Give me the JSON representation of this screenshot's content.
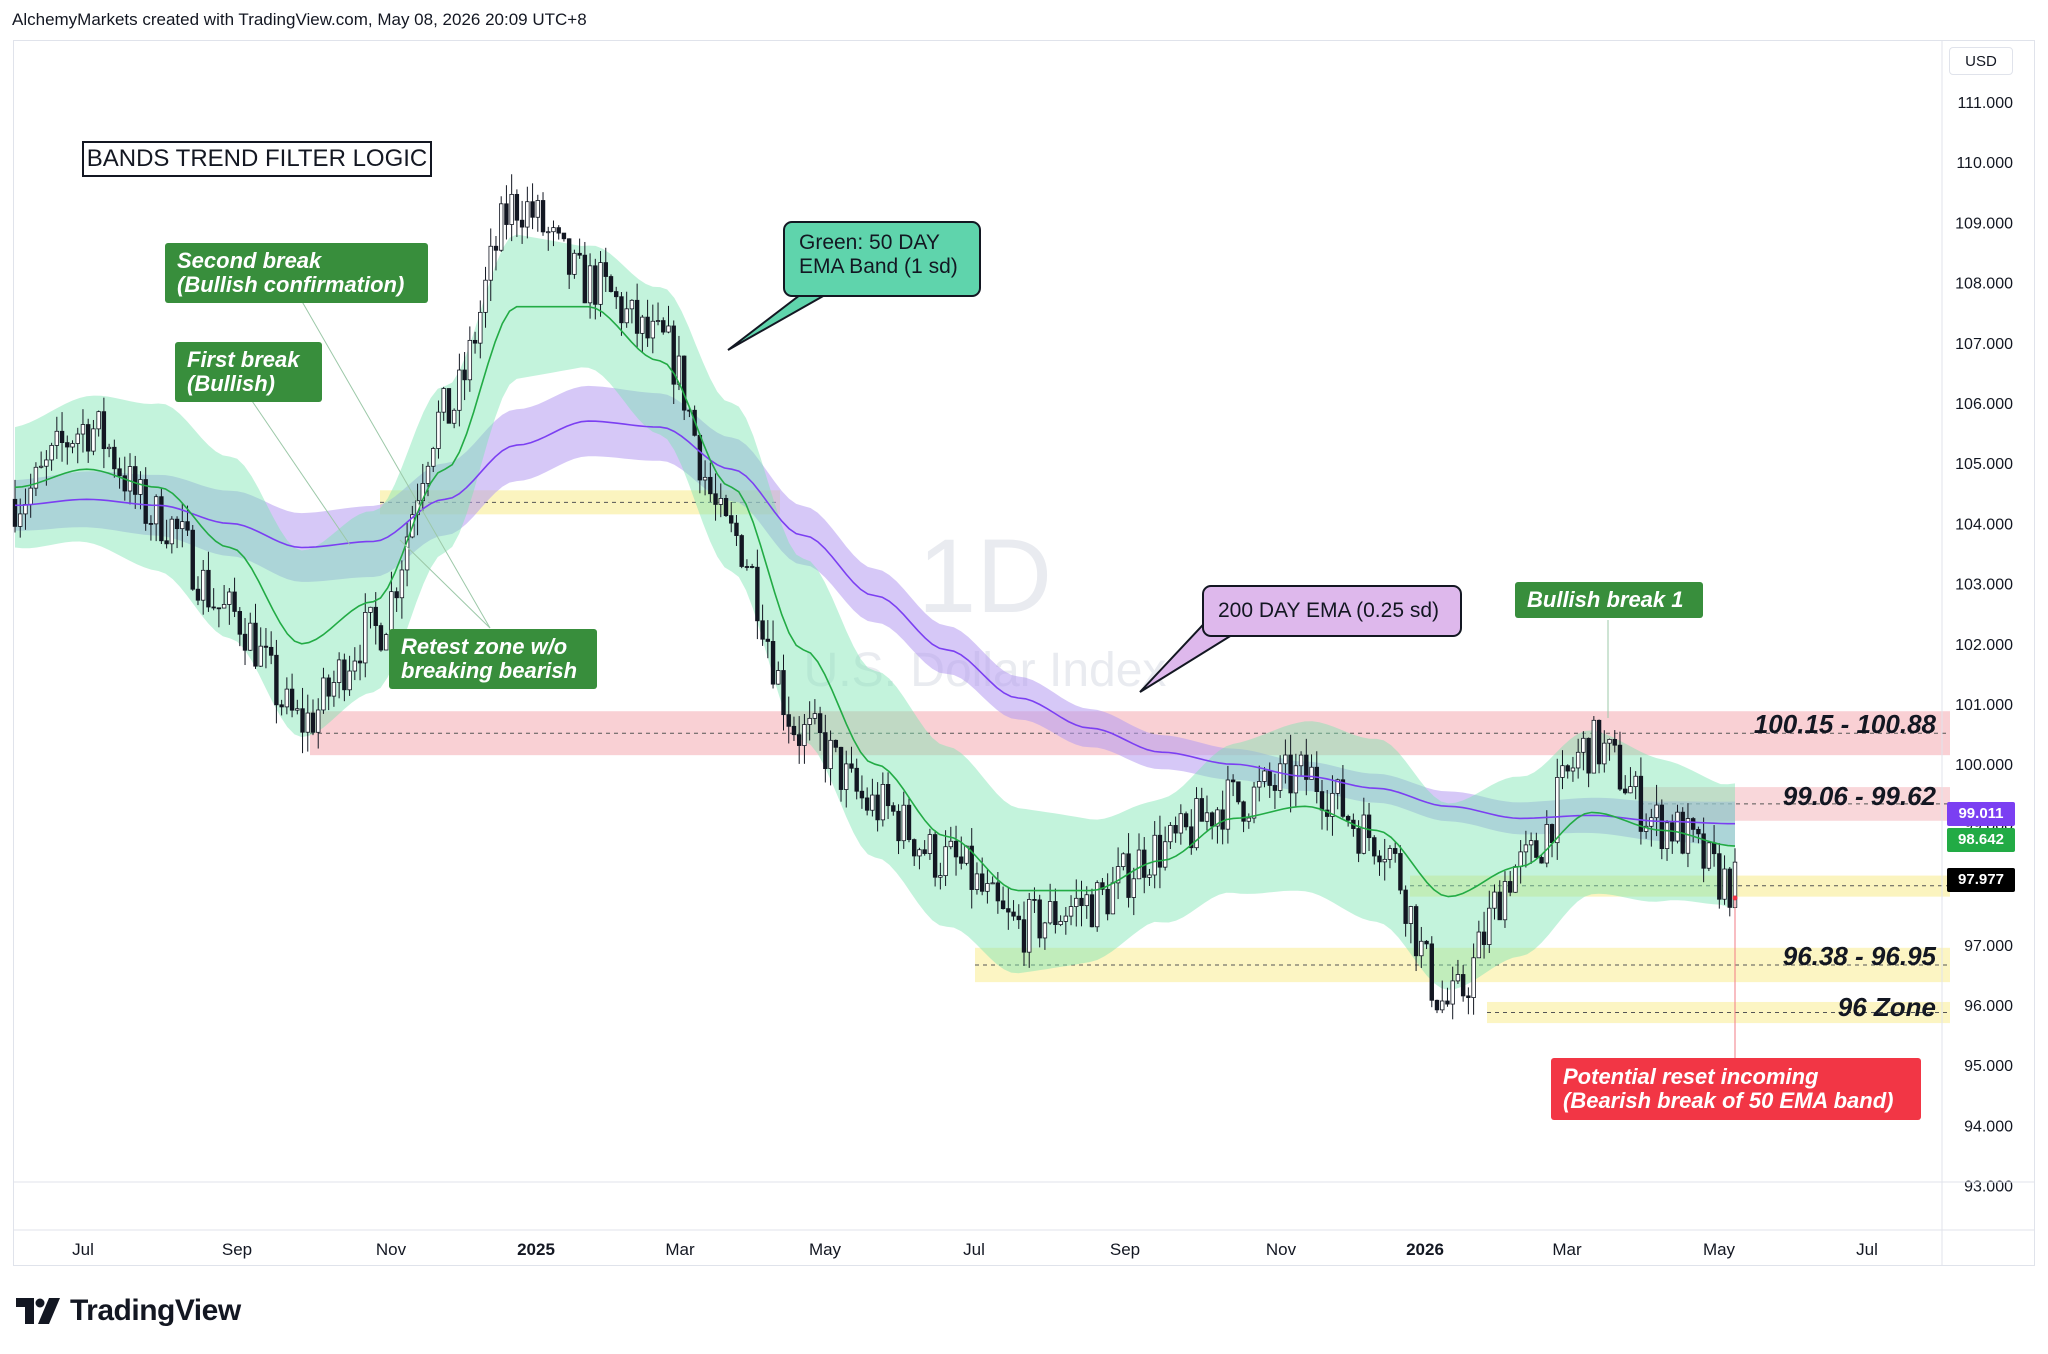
{
  "header": {
    "text": "AlchemyMarkets created with TradingView.com, May 08, 2026 20:09 UTC+8"
  },
  "brand": {
    "name": "TradingView"
  },
  "currency": "USD",
  "watermark": {
    "interval": "1D",
    "symbol": "U.S. Dollar Index"
  },
  "title_box": "BANDS TREND FILTER LOGIC",
  "annotations": {
    "second_break": "Second break\n(Bullish confirmation)",
    "first_break": "First break\n(Bullish)",
    "retest_zone": "Retest zone w/o\nbreaking bearish",
    "green_band": "Green: 50 DAY\nEMA Band (1 sd)",
    "purple_band": "200 DAY EMA (0.25 sd)",
    "bullish_break": "Bullish break 1",
    "reset": "Potential reset incoming\n(Bearish break of 50 EMA band)"
  },
  "zones": [
    {
      "label": "100.15 - 100.88",
      "low": 100.15,
      "high": 100.88,
      "color": "#f8c8cc"
    },
    {
      "label": "99.06 - 99.62",
      "low": 99.06,
      "high": 99.62,
      "color": "#f8d0d3"
    },
    {
      "label": "96.38 - 96.95",
      "low": 96.38,
      "high": 96.95,
      "color": "#fbf3b8"
    },
    {
      "label": "96 Zone",
      "low": 95.7,
      "high": 96.05,
      "color": "#fbf3b8"
    }
  ],
  "price_tags": [
    {
      "value": "99.011",
      "color": "#7b3ff2"
    },
    {
      "value": "98.642",
      "color": "#22ab45"
    },
    {
      "value": "97.977",
      "color": "#000000"
    }
  ],
  "colors": {
    "green_band": "#7be5b2",
    "purple_band": "#b49bf0",
    "ema50": "#22ab45",
    "ema200": "#7b3ff2",
    "candle": "#131722"
  },
  "chart_data": {
    "type": "line",
    "title": "BANDS TREND FILTER LOGIC",
    "instrument": "U.S. Dollar Index",
    "interval": "1D",
    "ylabel": "USD",
    "y_ticks": [
      "111.000",
      "110.000",
      "109.000",
      "108.000",
      "107.000",
      "106.000",
      "105.000",
      "104.000",
      "103.000",
      "102.000",
      "101.000",
      "100.000",
      "99.000",
      "98.000",
      "97.000",
      "96.000",
      "95.000",
      "94.000",
      "93.000"
    ],
    "x_ticks": [
      "Jul",
      "Sep",
      "Nov",
      "2025",
      "Mar",
      "May",
      "Jul",
      "Sep",
      "Nov",
      "2026",
      "Mar",
      "May",
      "Jul"
    ],
    "ylim": [
      93.0,
      111.0
    ],
    "grid": false,
    "x": [
      0,
      1,
      2,
      3,
      4,
      5,
      6,
      7,
      8,
      9,
      10,
      11,
      12,
      13,
      14,
      15,
      16,
      17,
      18,
      19,
      20,
      21,
      22,
      23,
      24
    ],
    "series": [
      {
        "name": "U.S. Dollar Index",
        "values": [
          104.4,
          105.6,
          104.1,
          102.5,
          100.7,
          102.2,
          105.8,
          109.3,
          108.0,
          107.0,
          103.8,
          100.5,
          99.3,
          98.4,
          97.3,
          97.7,
          98.6,
          99.4,
          99.8,
          98.8,
          96.0,
          98.3,
          100.3,
          99.0,
          97.98
        ]
      },
      {
        "name": "EMA Band",
        "values": [
          104.6,
          104.9,
          104.6,
          103.6,
          102.0,
          102.7,
          104.9,
          107.6,
          107.6,
          106.7,
          104.6,
          101.9,
          100.0,
          98.8,
          97.9,
          97.9,
          98.4,
          99.1,
          99.3,
          98.9,
          97.8,
          98.3,
          99.2,
          98.9,
          98.64
        ]
      },
      {
        "name": "200 DAY EMA",
        "values": [
          104.3,
          104.4,
          104.3,
          104.0,
          103.6,
          103.7,
          104.4,
          105.3,
          105.7,
          105.6,
          104.9,
          103.8,
          102.8,
          101.9,
          101.1,
          100.6,
          100.2,
          100.0,
          99.8,
          99.6,
          99.3,
          99.1,
          99.15,
          99.05,
          99.011
        ]
      }
    ]
  }
}
